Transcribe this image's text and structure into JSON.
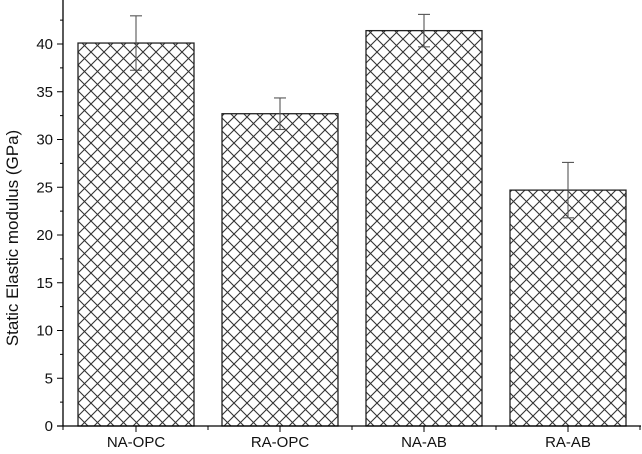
{
  "chart_data": {
    "type": "bar",
    "title": "",
    "xlabel": "",
    "ylabel": "Static Elastic modulus (GPa)",
    "categories": [
      "NA-OPC",
      "RA-OPC",
      "NA-AB",
      "RA-AB"
    ],
    "values": [
      40.1,
      32.7,
      41.4,
      24.7
    ],
    "error": [
      2.85,
      1.65,
      1.7,
      2.9
    ],
    "ylim": [
      0,
      44.6
    ],
    "yticks": [
      0,
      5,
      10,
      15,
      20,
      25,
      30,
      35,
      40
    ],
    "grid": false,
    "legend": null,
    "bar_fill": "crosshatch",
    "colors": {
      "bar_edge": "#222222",
      "hatch": "#333333",
      "error_bar": "#555555",
      "axis": "#000000"
    }
  }
}
